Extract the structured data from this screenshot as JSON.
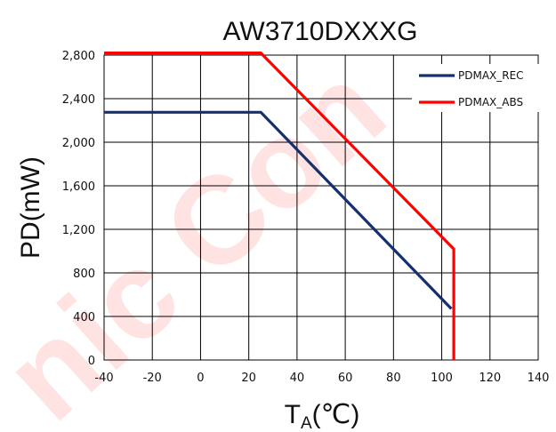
{
  "chart_data": {
    "type": "line",
    "title": "AW3710DXXXG",
    "xlabel_main": "T",
    "xlabel_sub": "A",
    "xlabel_unit": "(℃)",
    "ylabel": "PD(mW)",
    "xlim": [
      -40,
      140
    ],
    "ylim": [
      0,
      2800
    ],
    "x_ticks": [
      -40,
      -20,
      0,
      20,
      40,
      60,
      80,
      100,
      120,
      140
    ],
    "x_tick_labels": [
      "-40",
      "-20",
      "0",
      "20",
      "40",
      "60",
      "80",
      "100",
      "120",
      "140"
    ],
    "y_ticks": [
      0,
      400,
      800,
      1200,
      1600,
      2000,
      2400,
      2800
    ],
    "y_tick_labels": [
      "0",
      "400",
      "800",
      "1,200",
      "1,600",
      "2,000",
      "2,400",
      "2,800"
    ],
    "grid": true,
    "legend_position": "top-right",
    "series": [
      {
        "name": "PDMAX_REC",
        "color": "#14306e",
        "points": [
          [
            -40,
            2275
          ],
          [
            25,
            2275
          ],
          [
            104,
            470
          ]
        ]
      },
      {
        "name": "PDMAX_ABS",
        "color": "#ff0000",
        "points": [
          [
            -40,
            2820
          ],
          [
            25,
            2820
          ],
          [
            105,
            1020
          ],
          [
            105,
            0
          ]
        ]
      }
    ]
  },
  "watermark": {
    "text": "nic Con",
    "color": "#ff0000"
  }
}
